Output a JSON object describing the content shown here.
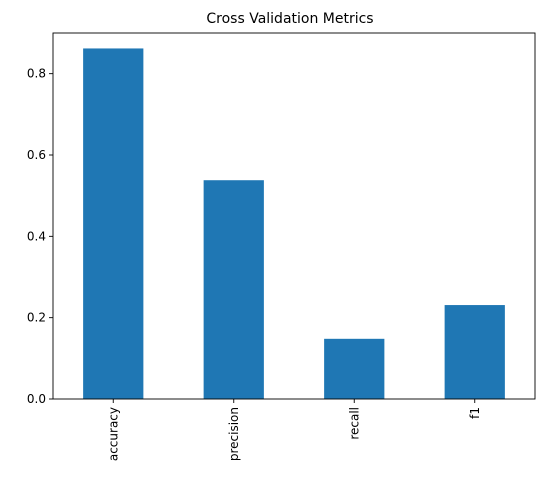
{
  "chart_data": {
    "type": "bar",
    "title": "Cross Validation Metrics",
    "categories": [
      "accuracy",
      "precision",
      "recall",
      "f1"
    ],
    "values": [
      0.862,
      0.538,
      0.148,
      0.231
    ],
    "xlabel": "",
    "ylabel": "",
    "ylim": [
      0,
      0.9
    ],
    "yticks": [
      0.0,
      0.2,
      0.4,
      0.6,
      0.8
    ],
    "ytick_labels": [
      "0.0",
      "0.2",
      "0.4",
      "0.6",
      "0.8"
    ],
    "bar_color": "#1f77b4",
    "grid": false,
    "legend": "none",
    "xtick_rotation": "vertical"
  }
}
